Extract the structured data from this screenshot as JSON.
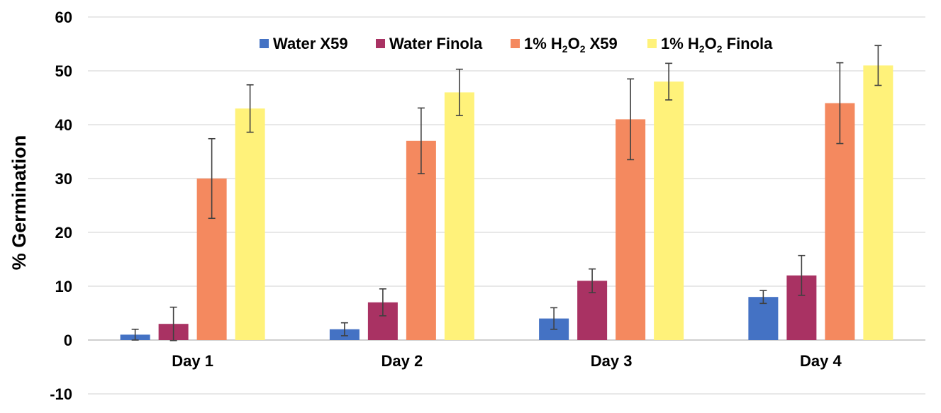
{
  "chart_data": {
    "type": "bar",
    "ylabel": "% Germination",
    "ylim": [
      -10,
      60
    ],
    "yticks": [
      -10,
      0,
      10,
      20,
      30,
      40,
      50,
      60
    ],
    "categories": [
      "Day 1",
      "Day 2",
      "Day 3",
      "Day 4"
    ],
    "legend_position": "top",
    "grid": true,
    "series": [
      {
        "name": "Water X59",
        "legend_parts": [
          "Water X59"
        ],
        "color": "#4472c4",
        "values": [
          1,
          2,
          4,
          8
        ],
        "errors": [
          1,
          1.2,
          2,
          1.2
        ]
      },
      {
        "name": "Water Finola",
        "legend_parts": [
          "Water Finola"
        ],
        "color": "#a93263",
        "values": [
          3,
          7,
          11,
          12
        ],
        "errors": [
          3.1,
          2.5,
          2.2,
          3.7
        ]
      },
      {
        "name": "1% H2O2 X59",
        "legend_parts": [
          "1% H",
          "2",
          "O",
          "2",
          " X59"
        ],
        "color": "#f4895f",
        "values": [
          30,
          37,
          41,
          44
        ],
        "errors": [
          7.4,
          6.1,
          7.5,
          7.5
        ]
      },
      {
        "name": "1% H2O2 Finola",
        "legend_parts": [
          "1% H",
          "2",
          "O",
          "2",
          " Finola"
        ],
        "color": "#fff27a",
        "values": [
          43,
          46,
          48,
          51
        ],
        "errors": [
          4.4,
          4.3,
          3.4,
          3.7
        ]
      }
    ]
  }
}
